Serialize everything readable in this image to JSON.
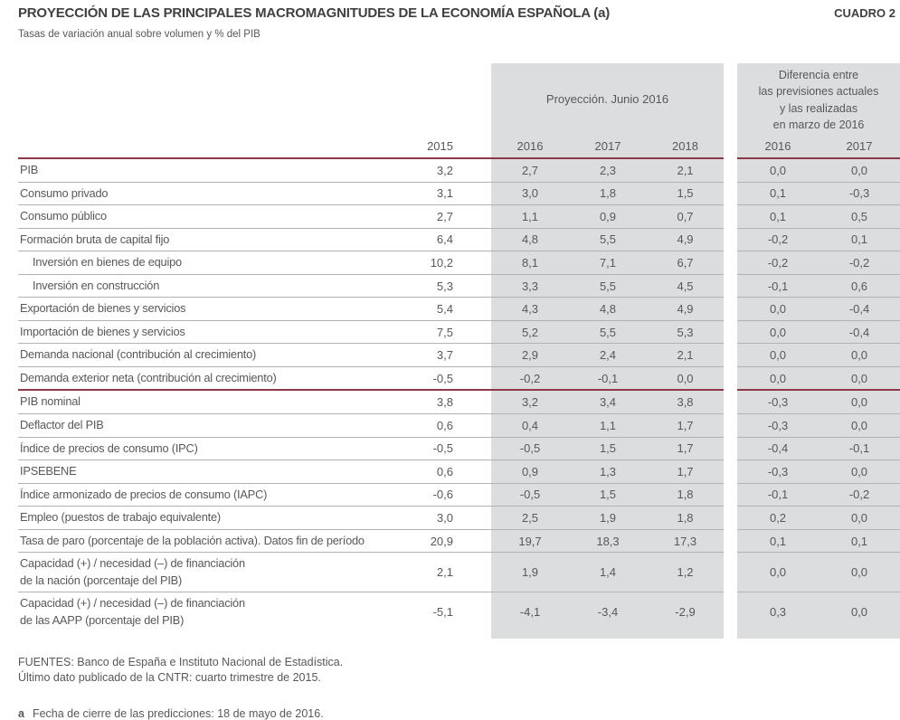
{
  "colors": {
    "accent_red": "#8d394b",
    "band_grey": "#dcddde",
    "separator_grey": "#b1b2b4",
    "text_grey": "#57585a"
  },
  "header": {
    "title": "PROYECCIÓN DE LAS PRINCIPALES MACROMAGNITUDES DE LA ECONOMÍA ESPAÑOLA (a)",
    "table_number": "CUADRO 2",
    "subtitle": "Tasas de variación anual sobre volumen y % del PIB"
  },
  "table": {
    "group_projection": "Proyección. Junio 2016",
    "group_difference_lines": [
      "Diferencia entre",
      "las previsiones actuales",
      "y las realizadas",
      "en marzo de 2016"
    ],
    "year_base": "2015",
    "years_projection": [
      "2016",
      "2017",
      "2018"
    ],
    "years_difference": [
      "2016",
      "2017"
    ],
    "rows": [
      {
        "label": "PIB",
        "indent": false,
        "base_2015": "3,2",
        "projection": [
          "2,7",
          "2,3",
          "2,1"
        ],
        "difference": [
          "0,0",
          "0,0"
        ]
      },
      {
        "label": "Consumo privado",
        "indent": false,
        "base_2015": "3,1",
        "projection": [
          "3,0",
          "1,8",
          "1,5"
        ],
        "difference": [
          "0,1",
          "-0,3"
        ]
      },
      {
        "label": "Consumo público",
        "indent": false,
        "base_2015": "2,7",
        "projection": [
          "1,1",
          "0,9",
          "0,7"
        ],
        "difference": [
          "0,1",
          "0,5"
        ]
      },
      {
        "label": "Formación bruta de capital fijo",
        "indent": false,
        "base_2015": "6,4",
        "projection": [
          "4,8",
          "5,5",
          "4,9"
        ],
        "difference": [
          "-0,2",
          "0,1"
        ]
      },
      {
        "label": "Inversión en bienes de equipo",
        "indent": true,
        "base_2015": "10,2",
        "projection": [
          "8,1",
          "7,1",
          "6,7"
        ],
        "difference": [
          "-0,2",
          "-0,2"
        ]
      },
      {
        "label": "Inversión en construcción",
        "indent": true,
        "base_2015": "5,3",
        "projection": [
          "3,3",
          "5,5",
          "4,5"
        ],
        "difference": [
          "-0,1",
          "0,6"
        ]
      },
      {
        "label": "Exportación de bienes y servicios",
        "indent": false,
        "base_2015": "5,4",
        "projection": [
          "4,3",
          "4,8",
          "4,9"
        ],
        "difference": [
          "0,0",
          "-0,4"
        ]
      },
      {
        "label": "Importación de bienes y servicios",
        "indent": false,
        "base_2015": "7,5",
        "projection": [
          "5,2",
          "5,5",
          "5,3"
        ],
        "difference": [
          "0,0",
          "-0,4"
        ]
      },
      {
        "label": "Demanda nacional (contribución al crecimiento)",
        "indent": false,
        "base_2015": "3,7",
        "projection": [
          "2,9",
          "2,4",
          "2,1"
        ],
        "difference": [
          "0,0",
          "0,0"
        ]
      },
      {
        "label": "Demanda exterior neta (contribución al crecimiento)",
        "indent": false,
        "base_2015": "-0,5",
        "projection": [
          "-0,2",
          "-0,1",
          "0,0"
        ],
        "difference": [
          "0,0",
          "0,0"
        ],
        "rule_below": "red"
      },
      {
        "label": "PIB nominal",
        "indent": false,
        "base_2015": "3,8",
        "projection": [
          "3,2",
          "3,4",
          "3,8"
        ],
        "difference": [
          "-0,3",
          "0,0"
        ]
      },
      {
        "label": "Deflactor del PIB",
        "indent": false,
        "base_2015": "0,6",
        "projection": [
          "0,4",
          "1,1",
          "1,7"
        ],
        "difference": [
          "-0,3",
          "0,0"
        ]
      },
      {
        "label": "Índice de precios de consumo (IPC)",
        "indent": false,
        "base_2015": "-0,5",
        "projection": [
          "-0,5",
          "1,5",
          "1,7"
        ],
        "difference": [
          "-0,4",
          "-0,1"
        ]
      },
      {
        "label": "IPSEBENE",
        "indent": false,
        "base_2015": "0,6",
        "projection": [
          "0,9",
          "1,3",
          "1,7"
        ],
        "difference": [
          "-0,3",
          "0,0"
        ]
      },
      {
        "label": "Índice armonizado de precios de consumo (IAPC)",
        "indent": false,
        "base_2015": "-0,6",
        "projection": [
          "-0,5",
          "1,5",
          "1,8"
        ],
        "difference": [
          "-0,1",
          "-0,2"
        ]
      },
      {
        "label": "Empleo (puestos de trabajo equivalente)",
        "indent": false,
        "base_2015": "3,0",
        "projection": [
          "2,5",
          "1,9",
          "1,8"
        ],
        "difference": [
          "0,2",
          "0,0"
        ]
      },
      {
        "label": "Tasa de paro (porcentaje de la población activa). Datos fin de período",
        "indent": false,
        "base_2015": "20,9",
        "projection": [
          "19,7",
          "18,3",
          "17,3"
        ],
        "difference": [
          "0,1",
          "0,1"
        ]
      },
      {
        "label": "Capacidad (+) / necesidad (–) de financiación\nde la nación (porcentaje del PIB)",
        "indent": false,
        "base_2015": "2,1",
        "projection": [
          "1,9",
          "1,4",
          "1,2"
        ],
        "difference": [
          "0,0",
          "0,0"
        ]
      },
      {
        "label": "Capacidad (+) / necesidad (–) de financiación\nde las AAPP (porcentaje del PIB)",
        "indent": false,
        "base_2015": "-5,1",
        "projection": [
          "-4,1",
          "-3,4",
          "-2,9"
        ],
        "difference": [
          "0,3",
          "0,0"
        ]
      }
    ]
  },
  "footer": {
    "sources_line1": "FUENTES: Banco de España e Instituto Nacional de Estadística.",
    "sources_line2": "Último dato publicado de la CNTR: cuarto trimestre de 2015.",
    "note_marker": "a",
    "note_text": "Fecha de cierre de las predicciones: 18 de mayo de 2016."
  }
}
